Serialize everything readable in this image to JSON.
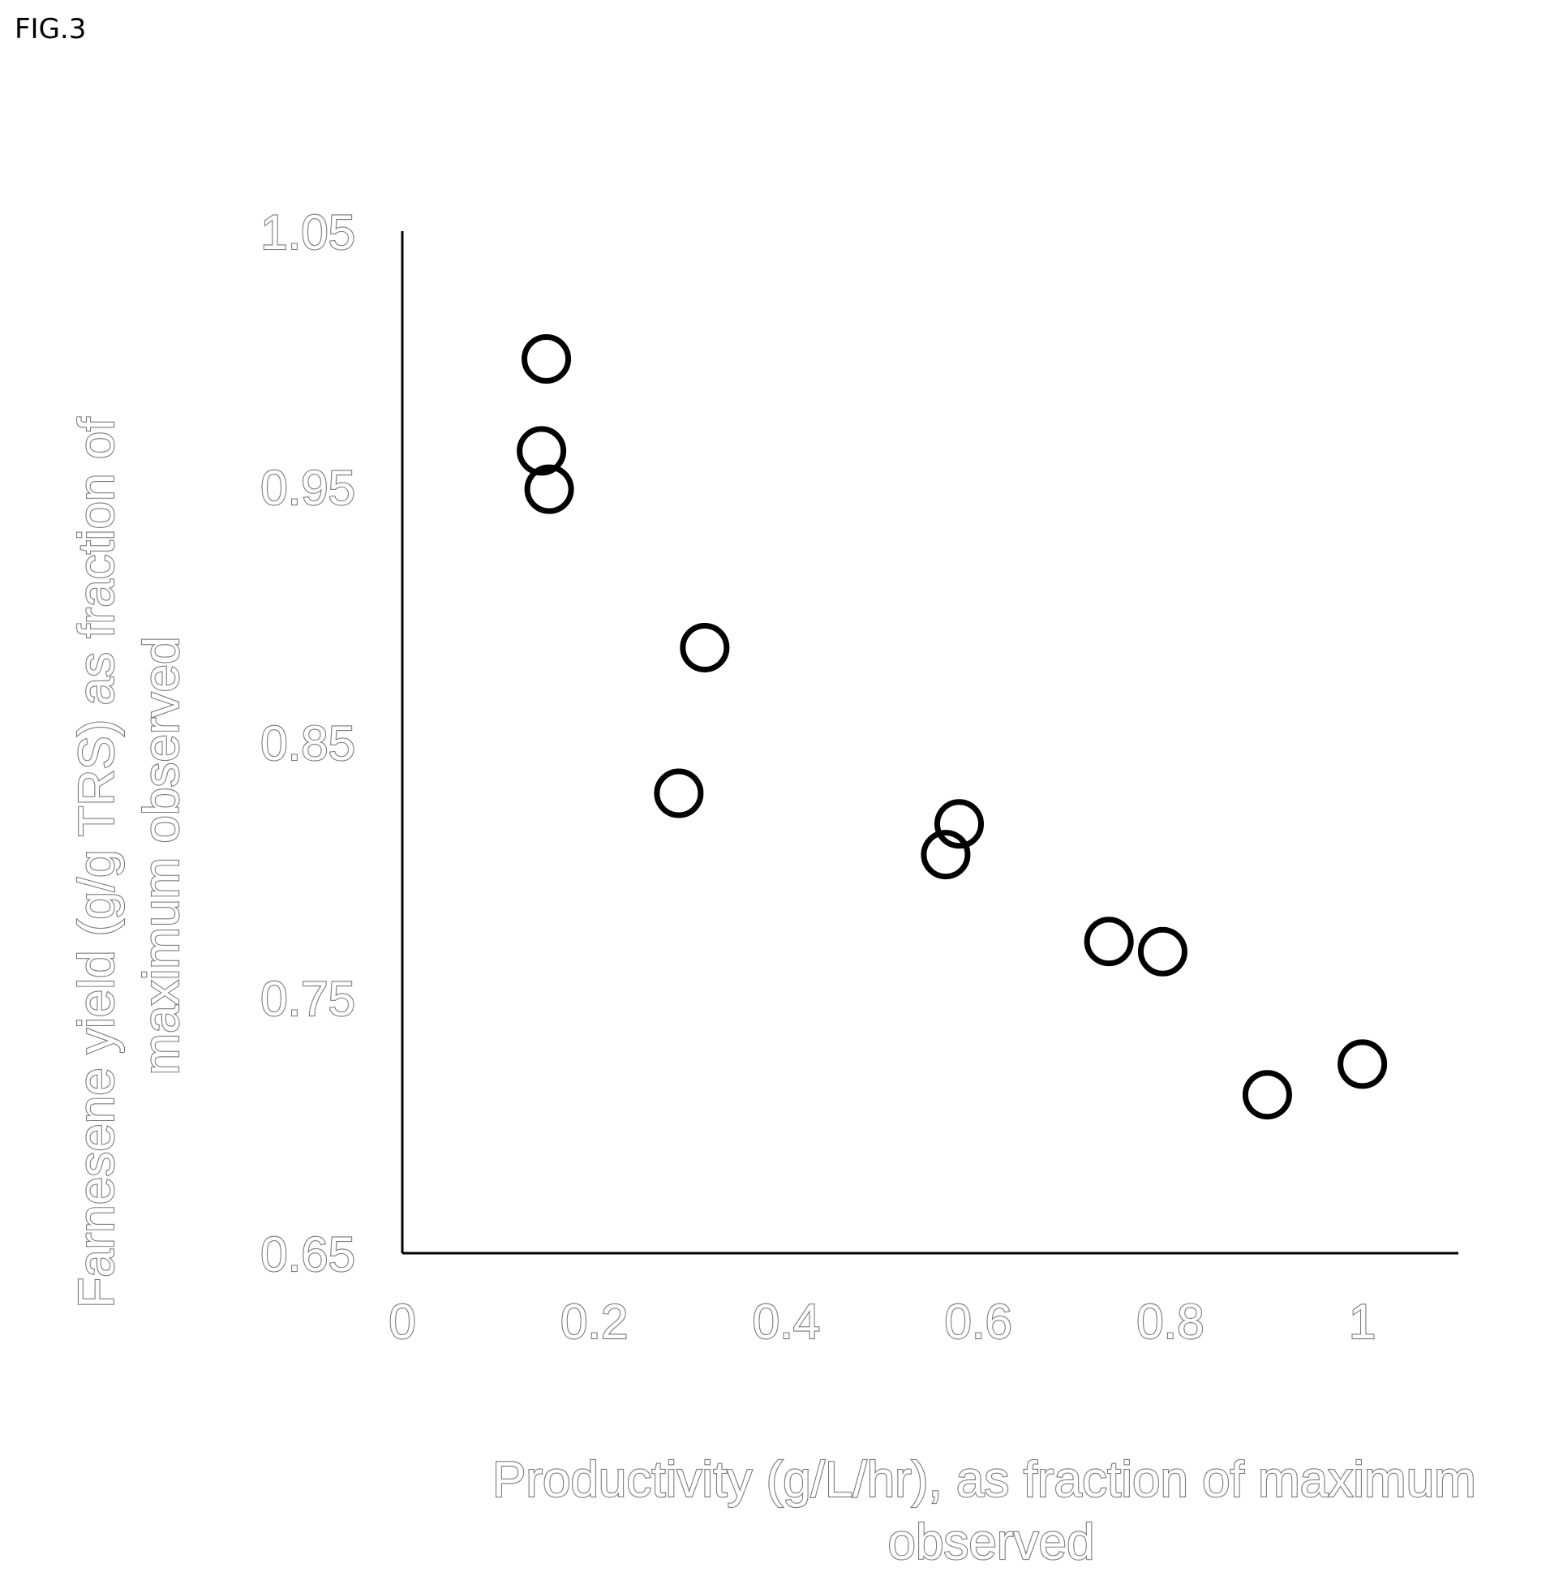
{
  "figure_label": "FIG.3",
  "chart_data": {
    "type": "scatter",
    "title": "",
    "xlabel_lines": [
      "Productivity (g/L/hr), as fraction of maximum",
      "observed"
    ],
    "ylabel_lines": [
      "Farnesene yield (g/g TRS) as fraction of",
      "maximum observed"
    ],
    "xlim": [
      0,
      1.1
    ],
    "ylim": [
      0.65,
      1.05
    ],
    "x_ticks": [
      0,
      0.2,
      0.4,
      0.6,
      0.8,
      1
    ],
    "x_tick_labels": [
      "0",
      "0.2",
      "0.4",
      "0.6",
      "0.8",
      "1"
    ],
    "y_ticks": [
      0.65,
      0.75,
      0.85,
      0.95,
      1.05
    ],
    "y_tick_labels": [
      "0.65",
      "0.75",
      "0.85",
      "0.95",
      "1.05"
    ],
    "grid": false,
    "marker": "open-circle",
    "marker_color": "#000000",
    "points": [
      {
        "x": 0.15,
        "y": 1.0
      },
      {
        "x": 0.145,
        "y": 0.964
      },
      {
        "x": 0.153,
        "y": 0.949
      },
      {
        "x": 0.315,
        "y": 0.887
      },
      {
        "x": 0.288,
        "y": 0.83
      },
      {
        "x": 0.58,
        "y": 0.818
      },
      {
        "x": 0.566,
        "y": 0.806
      },
      {
        "x": 0.736,
        "y": 0.772
      },
      {
        "x": 0.792,
        "y": 0.768
      },
      {
        "x": 0.901,
        "y": 0.712
      },
      {
        "x": 1.0,
        "y": 0.724
      }
    ]
  }
}
